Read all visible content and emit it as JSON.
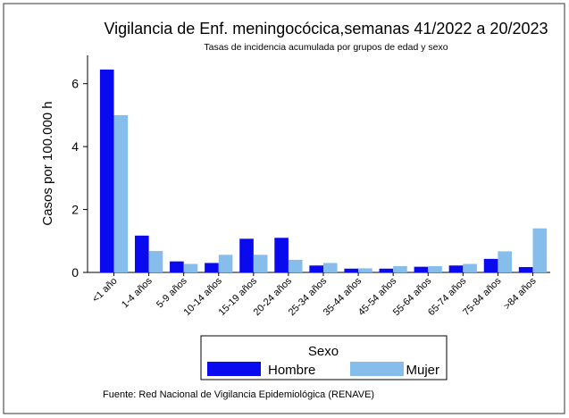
{
  "chart_data": {
    "type": "bar",
    "title": "Vigilancia de Enf. meningocócica,semanas 41/2022 a 20/2023",
    "subtitle": "Tasas de incidencia acumulada por grupos de edad y sexo",
    "y_label": "Casos por 100.000 h",
    "categories": [
      "<1 año",
      "1-4 años",
      "5-9 años",
      "10-14 años",
      "15-19 años",
      "20-24 años",
      "25-34 años",
      "35-44 años",
      "45-54 años",
      "55-64 años",
      "65-74 años",
      "75-84 años",
      ">84 años"
    ],
    "series": [
      {
        "name": "Hombre",
        "color": "#0a0aee",
        "values": [
          6.45,
          1.17,
          0.35,
          0.3,
          1.07,
          1.1,
          0.22,
          0.12,
          0.12,
          0.18,
          0.22,
          0.43,
          0.17
        ]
      },
      {
        "name": "Mujer",
        "color": "#87bdea",
        "values": [
          5.0,
          0.68,
          0.27,
          0.56,
          0.56,
          0.4,
          0.3,
          0.13,
          0.2,
          0.2,
          0.27,
          0.67,
          1.4
        ]
      }
    ],
    "ylim": [
      0,
      6.9
    ],
    "yticks": [
      0,
      2,
      4,
      6
    ],
    "legend_title": "Sexo",
    "source": "Fuente: Red Nacional de Vigilancia Epidemiológica (RENAVE)"
  }
}
